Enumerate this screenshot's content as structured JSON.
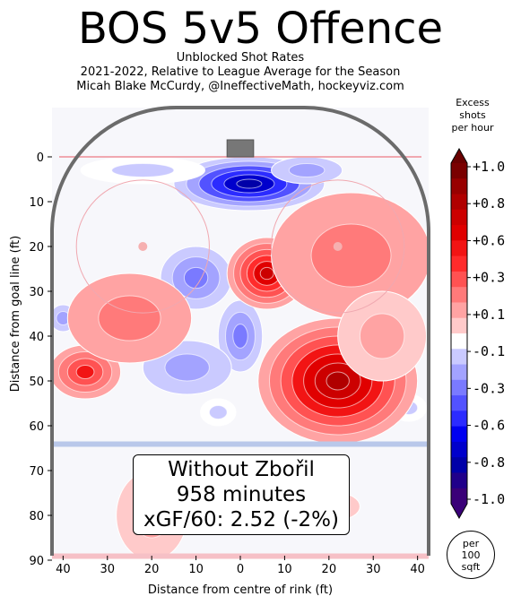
{
  "title": "BOS 5v5 Offence",
  "subtitle_lines": [
    "Unblocked Shot Rates",
    "2021-2022, Relative to League Average for the Season",
    "Micah Blake McCurdy, @IneffectiveMath, hockeyviz.com"
  ],
  "annotation": {
    "line1": "Without Zbořil",
    "line2": "958 minutes",
    "line3": "xGF/60: 2.52 (-2%)"
  },
  "colorbar": {
    "label_lines": [
      "Excess",
      "shots",
      "per hour"
    ],
    "tick_labels": [
      "+1.0",
      "+0.8",
      "+0.6",
      "+0.3",
      "+0.1",
      "-0.1",
      "-0.3",
      "-0.6",
      "-0.8",
      "-1.0"
    ],
    "colors": [
      "#7a0000",
      "#980000",
      "#b00000",
      "#cc0000",
      "#e00000",
      "#f21414",
      "#ff2b2b",
      "#ff5252",
      "#ff7a7a",
      "#ffa3a3",
      "#ffcaca",
      "#ffffff",
      "#cacaff",
      "#a3a3ff",
      "#7a7aff",
      "#5252ff",
      "#2b2bff",
      "#0000f0",
      "#0000cc",
      "#0000a8",
      "#20008a",
      "#3a0078"
    ]
  },
  "per_sqft_label": [
    "per",
    "100",
    "sqft"
  ],
  "chart_data": {
    "type": "heatmap",
    "title": "BOS 5v5 Offence",
    "xlabel": "Distance from centre of rink (ft)",
    "ylabel": "Distance from goal line (ft)",
    "xlim": [
      -42.5,
      42.5
    ],
    "ylim": [
      -11,
      89
    ],
    "x_tick_values": [
      -40,
      -30,
      -20,
      -10,
      0,
      10,
      20,
      30,
      40
    ],
    "x_tick_labels": [
      "40",
      "30",
      "20",
      "10",
      "0",
      "10",
      "20",
      "30",
      "40"
    ],
    "y_tick_values": [
      0,
      10,
      20,
      30,
      40,
      50,
      60,
      70,
      80,
      90
    ],
    "y_tick_labels": [
      "0",
      "10",
      "20",
      "30",
      "40",
      "50",
      "60",
      "70",
      "80",
      "90"
    ],
    "value_range": [
      -1.0,
      1.0
    ],
    "regions": [
      {
        "x": 2,
        "y": 6,
        "rx": 17,
        "ry": 6,
        "value": -0.8
      },
      {
        "x": -22,
        "y": 3,
        "rx": 14,
        "ry": 3,
        "value": -0.15
      },
      {
        "x": 15,
        "y": 3,
        "rx": 8,
        "ry": 3,
        "value": -0.2
      },
      {
        "x": -10,
        "y": 27,
        "rx": 8,
        "ry": 7,
        "value": -0.35
      },
      {
        "x": -40,
        "y": 36,
        "rx": 3,
        "ry": 3,
        "value": -0.2
      },
      {
        "x": 0,
        "y": 40,
        "rx": 5,
        "ry": 8,
        "value": -0.35
      },
      {
        "x": -12,
        "y": 47,
        "rx": 10,
        "ry": 6,
        "value": -0.2
      },
      {
        "x": -5,
        "y": 57,
        "rx": 4,
        "ry": 3,
        "value": -0.15
      },
      {
        "x": 38,
        "y": 56,
        "rx": 4,
        "ry": 3,
        "value": -0.15
      },
      {
        "x": 6,
        "y": 26,
        "rx": 9,
        "ry": 8,
        "value": 0.7
      },
      {
        "x": 22,
        "y": 50,
        "rx": 18,
        "ry": 14,
        "value": 0.85
      },
      {
        "x": 25,
        "y": 22,
        "rx": 18,
        "ry": 14,
        "value": 0.25
      },
      {
        "x": -35,
        "y": 48,
        "rx": 8,
        "ry": 6,
        "value": 0.5
      },
      {
        "x": -25,
        "y": 36,
        "rx": 14,
        "ry": 10,
        "value": 0.2
      },
      {
        "x": -20,
        "y": 80,
        "rx": 8,
        "ry": 10,
        "value": 0.12
      },
      {
        "x": 22,
        "y": 78,
        "rx": 5,
        "ry": 3,
        "value": 0.12
      },
      {
        "x": 32,
        "y": 40,
        "rx": 10,
        "ry": 10,
        "value": 0.15
      }
    ]
  }
}
